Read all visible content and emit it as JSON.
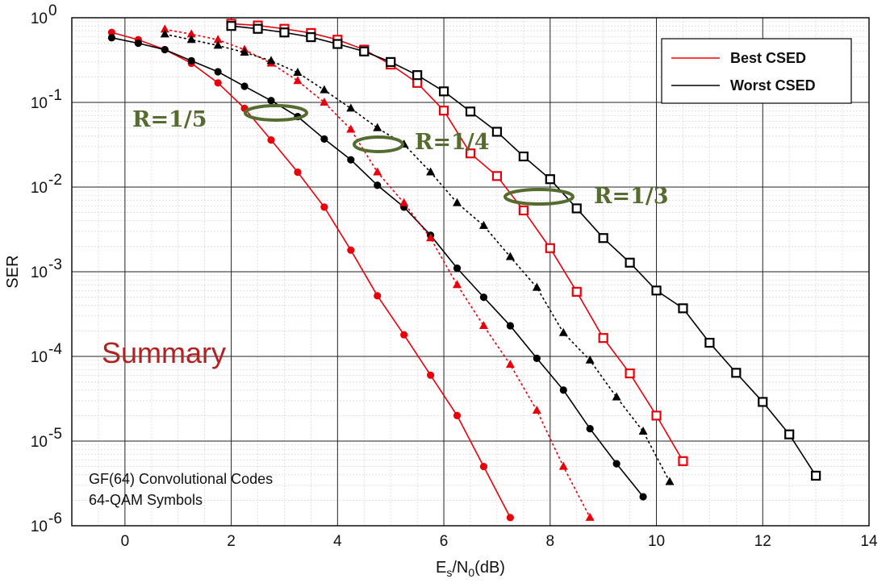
{
  "chart_data": {
    "type": "line",
    "xlabel_base": "E",
    "xlabel_sub1": "s",
    "xlabel_mid": "/N",
    "xlabel_sub2": "0",
    "xlabel_tail": "(dB)",
    "ylabel": "SER",
    "xlim": [
      -1,
      14
    ],
    "ylim": [
      1e-06,
      1
    ],
    "yscale": "log",
    "xticks": [
      0,
      2,
      4,
      6,
      8,
      10,
      12,
      14
    ],
    "yticks": [
      {
        "value": 1,
        "base": "10",
        "exp": "0"
      },
      {
        "value": 0.1,
        "base": "10",
        "exp": "-1"
      },
      {
        "value": 0.01,
        "base": "10",
        "exp": "-2"
      },
      {
        "value": 0.001,
        "base": "10",
        "exp": "-3"
      },
      {
        "value": 0.0001,
        "base": "10",
        "exp": "-4"
      },
      {
        "value": 1e-05,
        "base": "10",
        "exp": "-5"
      },
      {
        "value": 1e-06,
        "base": "10",
        "exp": "-6"
      }
    ],
    "grid": true,
    "legend_position": "top-right",
    "legend": [
      {
        "label": "Best CSED",
        "color": "#ff0000"
      },
      {
        "label": "Worst CSED",
        "color": "#000000"
      }
    ],
    "series": [
      {
        "color": "#e8000b",
        "marker": "circle",
        "dash": false,
        "x": [
          -0.25,
          0.25,
          0.75,
          1.25,
          1.75,
          2.25,
          2.75,
          3.25,
          3.75,
          4.25,
          4.75,
          5.25,
          5.75,
          6.25,
          6.75,
          7.25
        ],
        "y": [
          0.67,
          0.55,
          0.42,
          0.29,
          0.17,
          0.085,
          0.036,
          0.015,
          0.0058,
          0.0018,
          0.00052,
          0.00018,
          6e-05,
          2e-05,
          5e-06,
          1.25e-06
        ]
      },
      {
        "color": "#000000",
        "marker": "circle",
        "dash": false,
        "x": [
          -0.25,
          0.25,
          0.75,
          1.25,
          1.75,
          2.25,
          2.75,
          3.25,
          3.75,
          4.25,
          4.75,
          5.25,
          5.75,
          6.25,
          6.75,
          7.25,
          7.75,
          8.25,
          8.75,
          9.25,
          9.75
        ],
        "y": [
          0.58,
          0.5,
          0.42,
          0.31,
          0.23,
          0.155,
          0.105,
          0.068,
          0.037,
          0.021,
          0.0105,
          0.0058,
          0.0027,
          0.0011,
          0.0005,
          0.00023,
          9.5e-05,
          4e-05,
          1.4e-05,
          5.4e-06,
          2.2e-06
        ]
      },
      {
        "color": "#e8000b",
        "marker": "triangle",
        "dash": true,
        "x": [
          0.75,
          1.25,
          1.75,
          2.25,
          2.75,
          3.25,
          3.75,
          4.25,
          4.75,
          5.25,
          5.75,
          6.25,
          6.75,
          7.25,
          7.75,
          8.25,
          8.75
        ],
        "y": [
          0.73,
          0.64,
          0.55,
          0.42,
          0.29,
          0.18,
          0.1,
          0.048,
          0.015,
          0.0065,
          0.0025,
          0.0007,
          0.00023,
          8e-05,
          2.3e-05,
          5e-06,
          1.25e-06
        ]
      },
      {
        "color": "#000000",
        "marker": "triangle",
        "dash": true,
        "x": [
          0.75,
          1.25,
          1.75,
          2.25,
          2.75,
          3.25,
          3.75,
          4.25,
          4.75,
          5.25,
          5.75,
          6.25,
          6.75,
          7.25,
          7.75,
          8.25,
          8.75,
          9.25,
          9.75,
          10.25
        ],
        "y": [
          0.64,
          0.55,
          0.47,
          0.39,
          0.31,
          0.225,
          0.14,
          0.085,
          0.05,
          0.032,
          0.015,
          0.0065,
          0.0035,
          0.0015,
          0.00065,
          0.00019,
          9e-05,
          3.3e-05,
          1.3e-05,
          3.3e-06
        ]
      },
      {
        "color": "#e8000b",
        "marker": "square",
        "dash": false,
        "x": [
          2.0,
          2.5,
          3.0,
          3.5,
          4.0,
          4.5,
          5.0,
          5.5,
          6.0,
          6.5,
          7.0,
          7.5,
          8.0,
          8.5,
          9.0,
          9.5,
          10.0,
          10.5
        ],
        "y": [
          0.85,
          0.81,
          0.74,
          0.66,
          0.55,
          0.42,
          0.28,
          0.17,
          0.08,
          0.025,
          0.0135,
          0.0053,
          0.0019,
          0.00058,
          0.000165,
          6.3e-05,
          2e-05,
          5.8e-06
        ]
      },
      {
        "color": "#000000",
        "marker": "square",
        "dash": false,
        "x": [
          2.0,
          2.5,
          3.0,
          3.5,
          4.0,
          4.5,
          5.0,
          5.5,
          6.0,
          6.5,
          7.0,
          7.5,
          8.0,
          8.5,
          9.0,
          9.5,
          10.0,
          10.5,
          11.0,
          11.5,
          12.0,
          12.5,
          13.0
        ],
        "y": [
          0.8,
          0.74,
          0.67,
          0.59,
          0.49,
          0.4,
          0.3,
          0.21,
          0.135,
          0.078,
          0.045,
          0.023,
          0.0124,
          0.0056,
          0.0025,
          0.00128,
          0.0006,
          0.00037,
          0.000145,
          6.4e-05,
          2.9e-05,
          1.2e-05,
          3.9e-06
        ]
      }
    ],
    "annotations": {
      "rate_labels": [
        "R=1/5",
        "R=1/4",
        "R=1/3"
      ],
      "summary": "Summary",
      "note_line1": "GF(64) Convolutional Codes",
      "note_line2": "64-QAM Symbols",
      "ellipse_color": "#556b2f"
    }
  }
}
